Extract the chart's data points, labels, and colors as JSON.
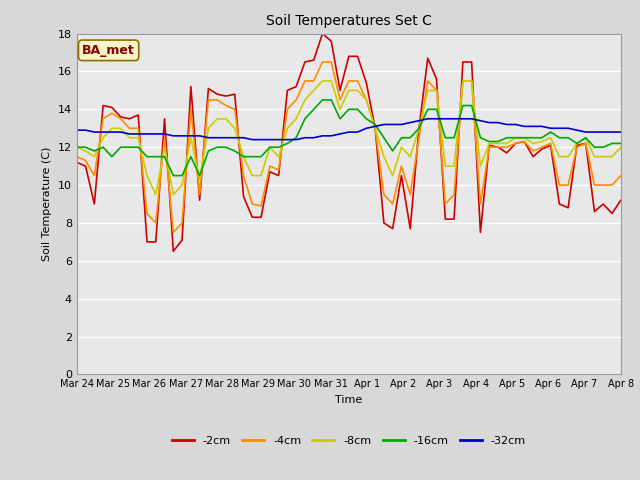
{
  "title": "Soil Temperatures Set C",
  "xlabel": "Time",
  "ylabel": "Soil Temperature (C)",
  "background_color": "#d8d8d8",
  "plot_bg_color": "#e8e8e8",
  "annotation_text": "BA_met",
  "annotation_color": "#8b0000",
  "annotation_bg": "#f5f5c8",
  "ylim": [
    0,
    18
  ],
  "yticks": [
    0,
    2,
    4,
    6,
    8,
    10,
    12,
    14,
    16,
    18
  ],
  "xtick_labels": [
    "Mar 24",
    "Mar 25",
    "Mar 26",
    "Mar 27",
    "Mar 28",
    "Mar 29",
    "Mar 30",
    "Mar 31",
    "Apr 1",
    "Apr 2",
    "Apr 3",
    "Apr 4",
    "Apr 5",
    "Apr 6",
    "Apr 7",
    "Apr 8"
  ],
  "series_colors": {
    "-2cm": "#cc0000",
    "-4cm": "#ff8c00",
    "-8cm": "#cccc00",
    "-16cm": "#00aa00",
    "-32cm": "#0000cc"
  },
  "series_linewidth": 1.2,
  "t2cm": [
    11.2,
    11.0,
    9.0,
    14.2,
    14.1,
    13.6,
    13.5,
    13.7,
    7.0,
    7.0,
    13.5,
    6.5,
    7.1,
    15.2,
    9.2,
    15.1,
    14.8,
    14.7,
    14.8,
    9.4,
    8.3,
    8.3,
    10.7,
    10.5,
    15.0,
    15.2,
    16.5,
    16.6,
    18.0,
    17.6,
    15.0,
    16.8,
    16.8,
    15.4,
    13.0,
    8.0,
    7.7,
    10.5,
    7.7,
    13.0,
    16.7,
    15.6,
    8.2,
    8.2,
    16.5,
    16.5,
    7.5,
    12.1,
    12.0,
    11.7,
    12.2,
    12.3,
    11.5,
    11.9,
    12.1,
    9.0,
    8.8,
    12.1,
    12.2,
    8.6,
    9.0,
    8.5,
    9.2
  ],
  "t4cm": [
    11.5,
    11.3,
    10.5,
    13.5,
    13.8,
    13.5,
    13.0,
    13.0,
    8.5,
    8.0,
    12.5,
    7.5,
    8.0,
    14.0,
    9.5,
    14.5,
    14.5,
    14.2,
    14.0,
    10.5,
    9.0,
    8.9,
    11.0,
    10.8,
    14.0,
    14.5,
    15.5,
    15.5,
    16.5,
    16.5,
    14.5,
    15.5,
    15.5,
    14.5,
    13.0,
    9.5,
    9.0,
    11.0,
    9.5,
    12.5,
    15.5,
    15.0,
    9.0,
    9.5,
    15.5,
    15.5,
    9.0,
    12.0,
    12.0,
    12.0,
    12.2,
    12.3,
    11.8,
    12.0,
    12.2,
    10.0,
    10.0,
    12.0,
    12.2,
    10.0,
    10.0,
    10.0,
    10.5
  ],
  "t8cm": [
    12.0,
    11.8,
    11.5,
    12.5,
    13.0,
    13.0,
    12.5,
    12.5,
    10.5,
    9.5,
    12.0,
    9.5,
    10.0,
    12.5,
    10.3,
    13.0,
    13.5,
    13.5,
    13.0,
    11.5,
    10.5,
    10.5,
    12.0,
    11.5,
    13.0,
    13.5,
    14.5,
    15.0,
    15.5,
    15.5,
    14.0,
    15.0,
    15.0,
    14.5,
    13.0,
    11.5,
    10.5,
    12.0,
    11.5,
    13.0,
    15.0,
    15.0,
    11.0,
    11.0,
    15.5,
    15.5,
    11.0,
    12.2,
    12.2,
    12.2,
    12.5,
    12.5,
    12.2,
    12.3,
    12.5,
    11.5,
    11.5,
    12.2,
    12.5,
    11.5,
    11.5,
    11.5,
    12.0
  ],
  "t16cm": [
    12.0,
    12.0,
    11.8,
    12.0,
    11.5,
    12.0,
    12.0,
    12.0,
    11.5,
    11.5,
    11.5,
    10.5,
    10.5,
    11.5,
    10.5,
    11.8,
    12.0,
    12.0,
    11.8,
    11.5,
    11.5,
    11.5,
    12.0,
    12.0,
    12.2,
    12.5,
    13.5,
    14.0,
    14.5,
    14.5,
    13.5,
    14.0,
    14.0,
    13.5,
    13.2,
    12.5,
    11.8,
    12.5,
    12.5,
    13.0,
    14.0,
    14.0,
    12.5,
    12.5,
    14.2,
    14.2,
    12.5,
    12.3,
    12.3,
    12.5,
    12.5,
    12.5,
    12.5,
    12.5,
    12.8,
    12.5,
    12.5,
    12.2,
    12.5,
    12.0,
    12.0,
    12.2,
    12.2
  ],
  "t32cm": [
    12.9,
    12.9,
    12.8,
    12.8,
    12.8,
    12.8,
    12.7,
    12.7,
    12.7,
    12.7,
    12.7,
    12.6,
    12.6,
    12.6,
    12.6,
    12.5,
    12.5,
    12.5,
    12.5,
    12.5,
    12.4,
    12.4,
    12.4,
    12.4,
    12.4,
    12.4,
    12.5,
    12.5,
    12.6,
    12.6,
    12.7,
    12.8,
    12.8,
    13.0,
    13.1,
    13.2,
    13.2,
    13.2,
    13.3,
    13.4,
    13.5,
    13.5,
    13.5,
    13.5,
    13.5,
    13.5,
    13.4,
    13.3,
    13.3,
    13.2,
    13.2,
    13.1,
    13.1,
    13.1,
    13.0,
    13.0,
    13.0,
    12.9,
    12.8,
    12.8,
    12.8,
    12.8,
    12.8
  ]
}
